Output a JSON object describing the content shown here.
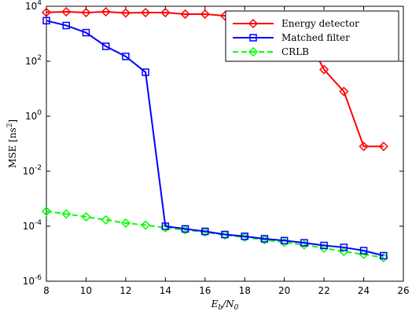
{
  "chart_data": {
    "type": "line",
    "xlabel": "E_b/N_0",
    "ylabel": "MSE [ns^2]",
    "xlim": [
      8,
      26
    ],
    "ylim": [
      1e-06,
      10000.0
    ],
    "y_scale": "log",
    "x_ticks": [
      8,
      10,
      12,
      14,
      16,
      18,
      20,
      22,
      24,
      26
    ],
    "y_ticks": [
      {
        "exp": -6,
        "value": 1e-06
      },
      {
        "exp": -4,
        "value": 0.0001
      },
      {
        "exp": -2,
        "value": 0.01
      },
      {
        "exp": 0,
        "value": 1
      },
      {
        "exp": 2,
        "value": 100
      },
      {
        "exp": 4,
        "value": 10000
      }
    ],
    "grid": false,
    "legend_position": "top-right",
    "x": [
      8,
      9,
      10,
      11,
      12,
      13,
      14,
      15,
      16,
      17,
      18,
      19,
      20,
      21,
      22,
      23,
      24,
      25
    ],
    "series": [
      {
        "name": "Energy detector",
        "color": "#ff0000",
        "marker": "diamond",
        "dash": "solid",
        "values": [
          6000,
          6300,
          5900,
          6300,
          5700,
          5900,
          5900,
          5200,
          5200,
          4500,
          4000,
          3800,
          3200,
          1200,
          50,
          8,
          0.08,
          0.08
        ]
      },
      {
        "name": "Matched filter",
        "color": "#0000ff",
        "marker": "square",
        "dash": "solid",
        "values": [
          3000,
          2000,
          1100,
          350,
          150,
          40,
          0.0001,
          8e-05,
          6.5e-05,
          5e-05,
          4.3e-05,
          3.5e-05,
          3e-05,
          2.5e-05,
          2e-05,
          1.7e-05,
          1.3e-05,
          8.5e-06
        ]
      },
      {
        "name": "CRLB",
        "color": "#00ff00",
        "marker": "diamond",
        "dash": "dashed",
        "values": [
          0.00035,
          0.00028,
          0.00022,
          0.00017,
          0.00013,
          0.00011,
          8.8e-05,
          7.4e-05,
          6.1e-05,
          4.8e-05,
          4e-05,
          3.2e-05,
          2.6e-05,
          2.1e-05,
          1.6e-05,
          1.2e-05,
          9.5e-06,
          7.2e-06
        ]
      }
    ]
  }
}
